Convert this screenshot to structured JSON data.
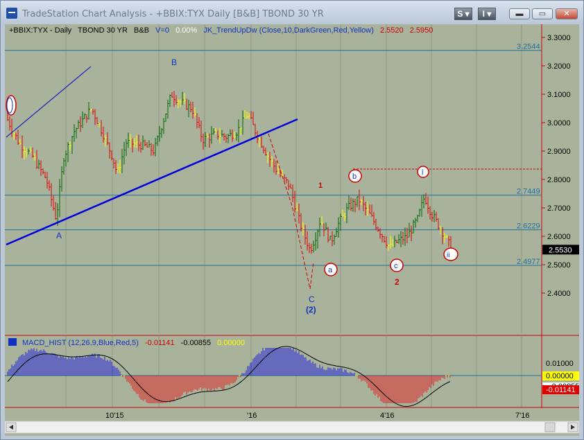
{
  "window": {
    "title": "TradeStation Chart Analysis - +BBIX:TYX Daily [B&B] TBOND 30 YR",
    "buttons": [
      "S",
      "I"
    ]
  },
  "header": {
    "symbol": "+BBIX:TYX - Daily",
    "description": "TBOND 30 YR",
    "tag": "B&B",
    "volume_label": "V=0",
    "change": "0.00%",
    "indicator": "JK_TrendUpDw (Close,10,DarkGreen,Red,Yellow)",
    "indicator_v1": "2.5520",
    "indicator_v2": "2.5950"
  },
  "price_axis": {
    "ticks": [
      "3.3000",
      "3.2000",
      "3.1000",
      "3.0000",
      "2.9000",
      "2.8000",
      "2.7000",
      "2.6000",
      "2.5000",
      "2.4000"
    ],
    "last_price": "2.5530"
  },
  "levels": [
    "3.2544",
    "2.7449",
    "2.6229",
    "2.4977"
  ],
  "annotations": {
    "A": "A",
    "B": "B",
    "C": "C",
    "two_blue": "(2)",
    "one_red": "1",
    "two_red": "2",
    "a": "a",
    "b": "b",
    "c": "c",
    "i": "i",
    "ii": "ii"
  },
  "macd": {
    "label": "MACD_HIST (12,26,9,Blue,Red,5)",
    "v1": "-0.01141",
    "v2": "-0.00855",
    "v3": "0.00000",
    "ticks": [
      "0.01000",
      "0.00000",
      "-0.01141"
    ],
    "behind": "-0.00855"
  },
  "time_axis": [
    "10'15",
    "'16",
    "4'16",
    "7'16"
  ],
  "colors": {
    "background": "#a9b39b",
    "up": "#006400",
    "down": "#e00000",
    "neutral": "#ffff00",
    "trendline": "#0000cc",
    "level_line": "#1e6fa0"
  }
}
